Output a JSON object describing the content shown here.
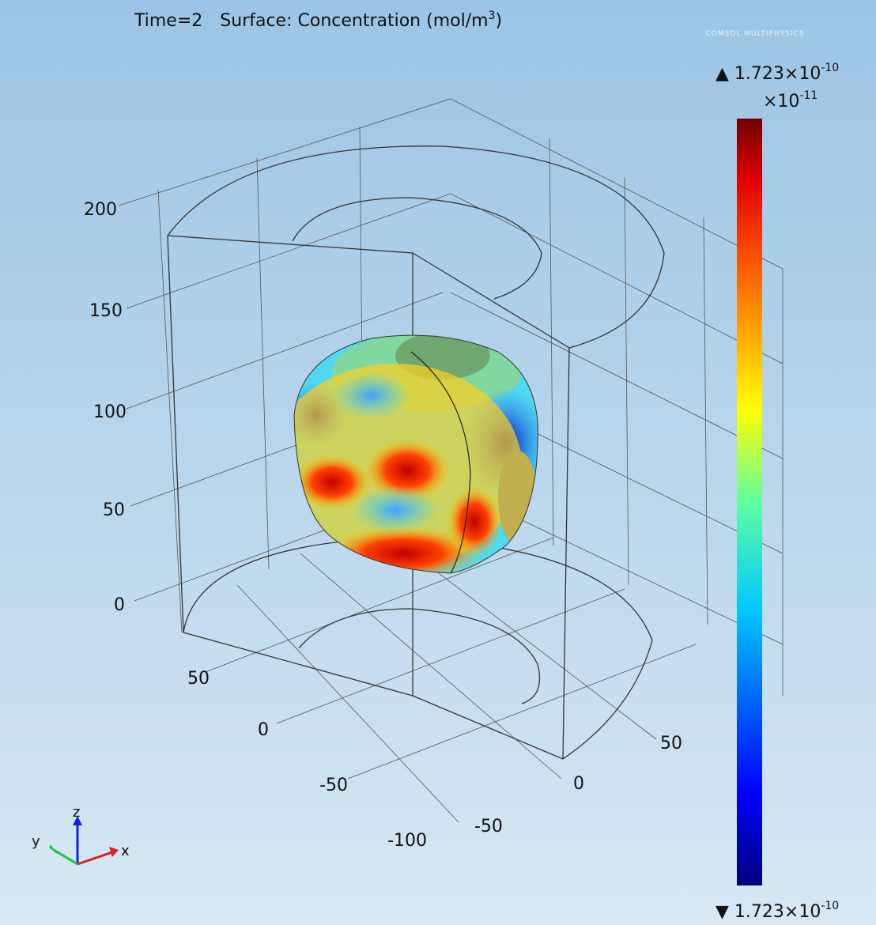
{
  "header": {
    "time": "Time=2",
    "surface": "Surface: Concentration (mol/m",
    "surface_sup": "3",
    "surface_end": ")"
  },
  "logo": "COMSOL MULTIPHYSICS",
  "colorbar": {
    "max_label": "▲ 1.723×10",
    "max_exp": "-10",
    "scale": "×10",
    "scale_exp": "-11",
    "min_label": "▼ 1.723×10",
    "min_exp": "-10"
  },
  "axes": {
    "z_ticks": [
      200,
      150,
      100,
      50,
      0
    ],
    "y_ticks": [
      50,
      0,
      -50,
      -100
    ],
    "x_ticks": [
      -50,
      0,
      50
    ]
  },
  "triad": {
    "z": "z",
    "y": "y",
    "x": "x"
  }
}
